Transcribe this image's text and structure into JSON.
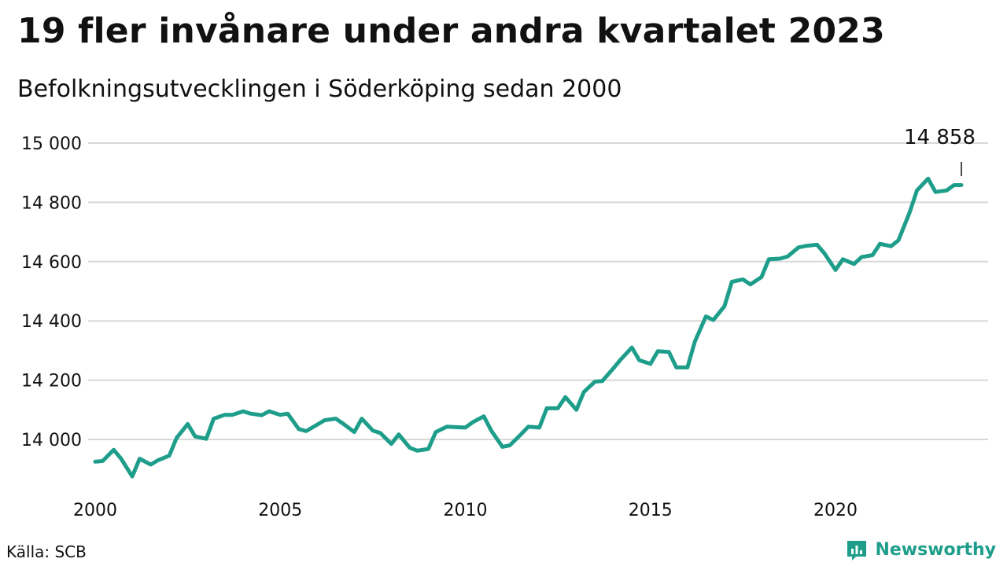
{
  "header": {
    "title": "19 fler invånare under andra kvartalet 2023",
    "subtitle": "Befolkningsutvecklingen i Söderköping sedan 2000"
  },
  "footer": {
    "source": "Källa: SCB",
    "brand": "Newsworthy",
    "brand_icon": "newsworthy-logo-icon"
  },
  "colors": {
    "line": "#1e9e8a",
    "grid": "#d8d8d8",
    "text": "#111111",
    "brand": "#1e9e8a"
  },
  "chart_data": {
    "type": "line",
    "title": "19 fler invånare under andra kvartalet 2023",
    "subtitle": "Befolkningsutvecklingen i Söderköping sedan 2000",
    "xlabel": "",
    "ylabel": "",
    "xlim": [
      2000.0,
      2023.4
    ],
    "ylim": [
      13870,
      15000
    ],
    "yticks": [
      14000,
      14200,
      14400,
      14600,
      14800,
      15000
    ],
    "ytick_labels": [
      "14 000",
      "14 200",
      "14 400",
      "14 600",
      "14 800",
      "15 000"
    ],
    "xticks": [
      2000,
      2005,
      2010,
      2015,
      2020
    ],
    "xtick_labels": [
      "2000",
      "2005",
      "2010",
      "2015",
      "2020"
    ],
    "grid": true,
    "legend": "none",
    "annotation": {
      "text": "14 858",
      "x": 2023.4,
      "y": 14858
    },
    "series": [
      {
        "x": [
          2000.0,
          2000.2,
          2000.5,
          2000.7,
          2001.0,
          2001.2,
          2001.5,
          2001.7,
          2002.0,
          2002.2,
          2002.5,
          2002.7,
          2003.0,
          2003.2,
          2003.5,
          2003.7,
          2004.0,
          2004.2,
          2004.5,
          2004.7,
          2005.0,
          2005.2,
          2005.5,
          2005.7,
          2006.0,
          2006.2,
          2006.5,
          2006.7,
          2007.0,
          2007.2,
          2007.5,
          2007.7,
          2008.0,
          2008.2,
          2008.5,
          2008.7,
          2009.0,
          2009.2,
          2009.5,
          2009.7,
          2010.0,
          2010.2,
          2010.5,
          2010.7,
          2011.0,
          2011.2,
          2011.5,
          2011.7,
          2012.0,
          2012.2,
          2012.5,
          2012.7,
          2013.0,
          2013.2,
          2013.5,
          2013.7,
          2014.0,
          2014.2,
          2014.5,
          2014.7,
          2015.0,
          2015.2,
          2015.5,
          2015.7,
          2016.0,
          2016.2,
          2016.5,
          2016.7,
          2017.0,
          2017.2,
          2017.5,
          2017.7,
          2018.0,
          2018.2,
          2018.5,
          2018.7,
          2019.0,
          2019.2,
          2019.5,
          2019.7,
          2020.0,
          2020.2,
          2020.5,
          2020.7,
          2021.0,
          2021.2,
          2021.5,
          2021.7,
          2022.0,
          2022.2,
          2022.5,
          2022.7,
          2023.0,
          2023.2,
          2023.4
        ],
        "y": [
          13925,
          13927,
          13965,
          13935,
          13875,
          13935,
          13915,
          13930,
          13945,
          14005,
          14052,
          14010,
          14002,
          14070,
          14083,
          14083,
          14095,
          14087,
          14082,
          14095,
          14083,
          14087,
          14035,
          14028,
          14050,
          14065,
          14070,
          14053,
          14025,
          14070,
          14030,
          14022,
          13985,
          14017,
          13972,
          13962,
          13968,
          14025,
          14043,
          14042,
          14040,
          14058,
          14078,
          14030,
          13975,
          13980,
          14017,
          14043,
          14040,
          14105,
          14105,
          14143,
          14100,
          14160,
          14195,
          14197,
          14240,
          14270,
          14310,
          14267,
          14255,
          14298,
          14295,
          14243,
          14243,
          14330,
          14415,
          14403,
          14450,
          14532,
          14540,
          14523,
          14548,
          14608,
          14610,
          14617,
          14648,
          14653,
          14657,
          14628,
          14572,
          14608,
          14592,
          14615,
          14622,
          14660,
          14652,
          14672,
          14765,
          14840,
          14880,
          14835,
          14840,
          14858,
          14858
        ]
      }
    ]
  }
}
